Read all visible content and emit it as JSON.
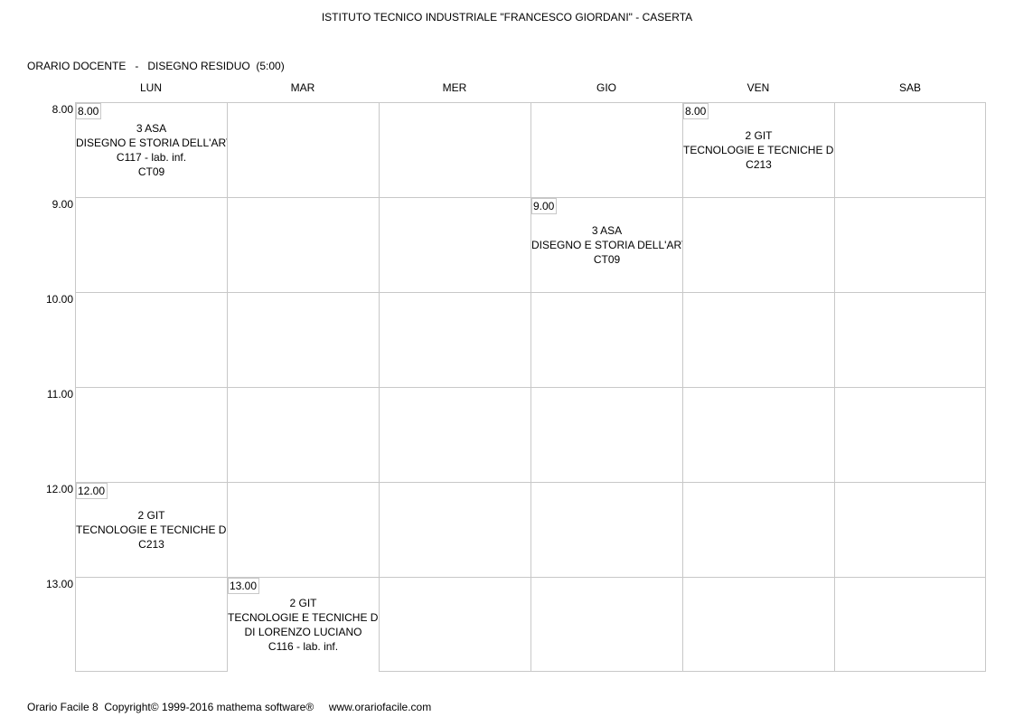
{
  "header": {
    "school": "ISTITUTO TECNICO INDUSTRIALE \"FRANCESCO GIORDANI\" - CASERTA",
    "teacher_line": "ORARIO DOCENTE   -   DISEGNO RESIDUO  (5:00)"
  },
  "days": [
    "LUN",
    "MAR",
    "MER",
    "GIO",
    "VEN",
    "SAB"
  ],
  "hours": [
    "8.00",
    "9.00",
    "10.00",
    "11.00",
    "12.00",
    "13.00"
  ],
  "lessons": [
    {
      "day": "LUN",
      "hour": "8.00",
      "time": "8.00",
      "lines": [
        "3 ASA",
        "DISEGNO E STORIA DELL'ARTE",
        "C117 - lab. inf.",
        "CT09"
      ]
    },
    {
      "day": "VEN",
      "hour": "8.00",
      "time": "8.00",
      "lines": [
        "2 GIT",
        "TECNOLOGIE E TECNICHE DI R",
        "C213"
      ]
    },
    {
      "day": "GIO",
      "hour": "9.00",
      "time": "9.00",
      "lines": [
        "3 ASA",
        "DISEGNO E STORIA DELL'ARTE",
        "CT09"
      ]
    },
    {
      "day": "LUN",
      "hour": "12.00",
      "time": "12.00",
      "lines": [
        "2 GIT",
        "TECNOLOGIE E TECNICHE DI R",
        "C213"
      ]
    },
    {
      "day": "MAR",
      "hour": "13.00",
      "time": "13.00",
      "lines": [
        "2 GIT",
        "TECNOLOGIE E TECNICHE DI R",
        "DI LORENZO LUCIANO",
        "C116 - lab. inf."
      ]
    }
  ],
  "footer": "Orario Facile 8  Copyright© 1999-2016 mathema software®     www.orariofacile.com"
}
